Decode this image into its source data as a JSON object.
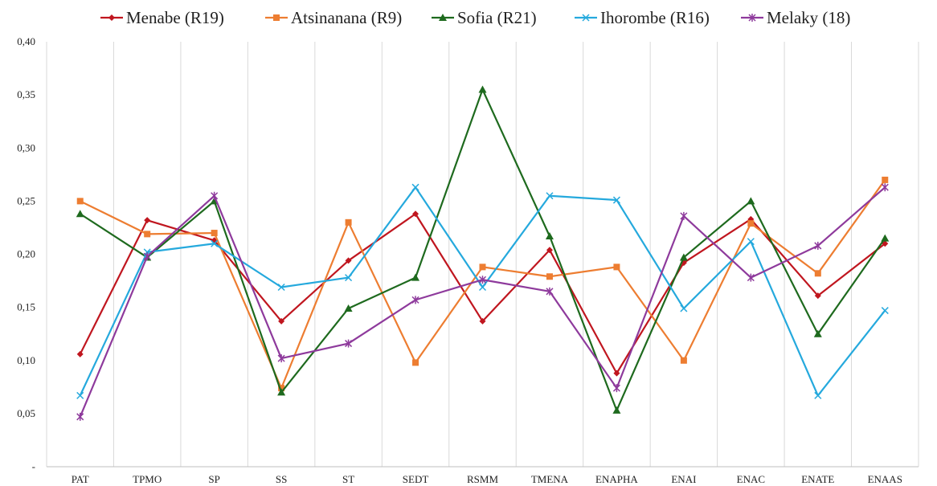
{
  "chart_data": {
    "type": "line",
    "title": "",
    "xlabel": "",
    "ylabel": "",
    "ylim": [
      0,
      0.4
    ],
    "y_ticks": [
      "-",
      "0,05",
      "0,10",
      "0,15",
      "0,20",
      "0,25",
      "0,30",
      "0,35",
      "0,40"
    ],
    "grid": "vertical",
    "legend_position": "top",
    "categories": [
      "PAT",
      "TPMO",
      "SP",
      "SS",
      "ST",
      "SEDT",
      "RSMM",
      "TMENA",
      "ENAPHA",
      "ENAI",
      "ENAC",
      "ENATE",
      "ENAAS"
    ],
    "series": [
      {
        "name": "Menabe (R19)",
        "color": "#c0161f",
        "marker": "diamond",
        "values": [
          0.106,
          0.232,
          0.213,
          0.137,
          0.194,
          0.238,
          0.137,
          0.204,
          0.088,
          0.192,
          0.233,
          0.161,
          0.21
        ]
      },
      {
        "name": "Atsinanana (R9)",
        "color": "#ed7d31",
        "marker": "square",
        "values": [
          0.25,
          0.219,
          0.22,
          0.074,
          0.23,
          0.098,
          0.188,
          0.179,
          0.188,
          0.1,
          0.229,
          0.182,
          0.27
        ]
      },
      {
        "name": "Sofia (R21)",
        "color": "#1e6a1e",
        "marker": "triangle",
        "values": [
          0.238,
          0.197,
          0.25,
          0.07,
          0.149,
          0.178,
          0.355,
          0.217,
          0.053,
          0.197,
          0.25,
          0.125,
          0.215
        ]
      },
      {
        "name": "Ihorombe (R16)",
        "color": "#25a9dd",
        "marker": "x",
        "values": [
          0.067,
          0.202,
          0.21,
          0.169,
          0.178,
          0.263,
          0.169,
          0.255,
          0.251,
          0.149,
          0.212,
          0.067,
          0.147
        ]
      },
      {
        "name": "Melaky (18)",
        "color": "#8e3a9c",
        "marker": "star",
        "values": [
          0.047,
          0.198,
          0.255,
          0.102,
          0.116,
          0.157,
          0.176,
          0.165,
          0.074,
          0.236,
          0.178,
          0.208,
          0.263
        ]
      }
    ]
  }
}
